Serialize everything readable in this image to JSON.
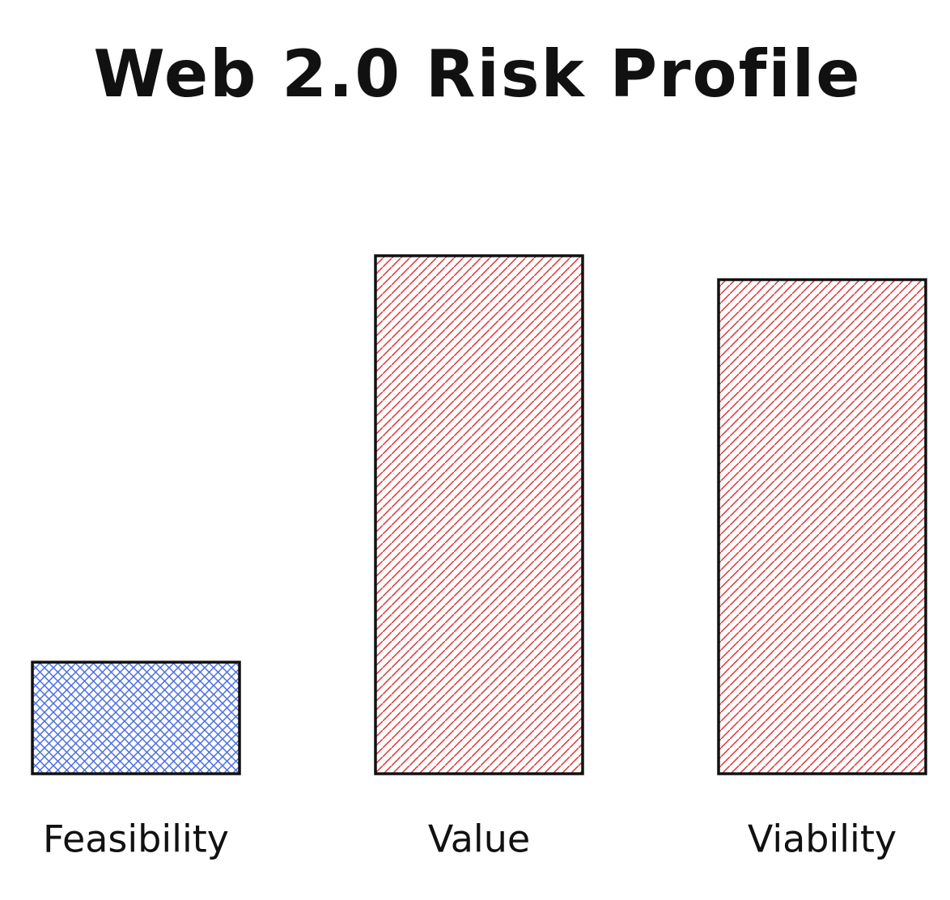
{
  "chart_data": {
    "type": "bar",
    "title": "Web 2.0 Risk Profile",
    "categories": [
      "Feasibility",
      "Value",
      "Viability"
    ],
    "values": [
      140,
      650,
      620
    ],
    "colors": [
      "#4a6ee0",
      "#e03131",
      "#e03131"
    ],
    "fill_styles": [
      "cross-hatch",
      "hatch",
      "hatch"
    ]
  }
}
